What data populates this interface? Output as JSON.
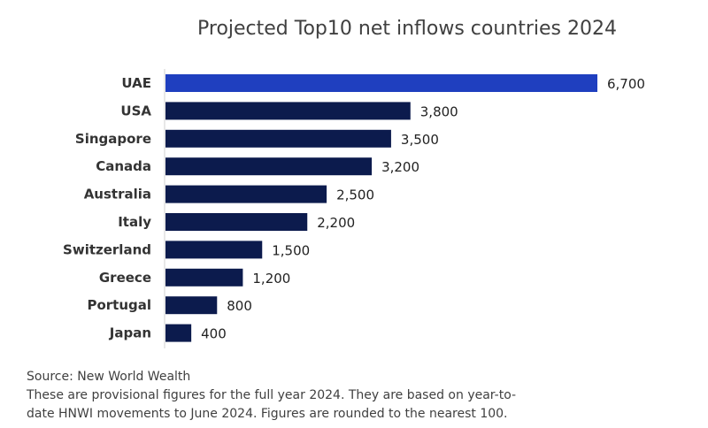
{
  "chart_data": {
    "type": "bar",
    "orientation": "horizontal",
    "title": "Projected Top10 net inflows countries 2024",
    "categories": [
      "UAE",
      "USA",
      "Singapore",
      "Canada",
      "Australia",
      "Italy",
      "Switzerland",
      "Greece",
      "Portugal",
      "Japan"
    ],
    "values": [
      6700,
      3800,
      3500,
      3200,
      2500,
      2200,
      1500,
      1200,
      800,
      400
    ],
    "value_labels": [
      "6,700",
      "3,800",
      "3,500",
      "3,200",
      "2,500",
      "2,200",
      "1,500",
      "1,200",
      "800",
      "400"
    ],
    "highlight_index": 0,
    "colors": {
      "highlight": "#1f3fbf",
      "bar": "#0c1b4d",
      "axis": "#d0d0d0"
    },
    "xlabel": "",
    "ylabel": "",
    "xlim": [
      0,
      6700
    ],
    "grid": false,
    "legend": "none"
  },
  "footnotes": {
    "source": "Source: New World Wealth",
    "note_line1": "These are provisional figures for the full year 2024. They are based on year-to-",
    "note_line2": "date HNWI movements to June 2024. Figures are rounded to the nearest 100."
  }
}
